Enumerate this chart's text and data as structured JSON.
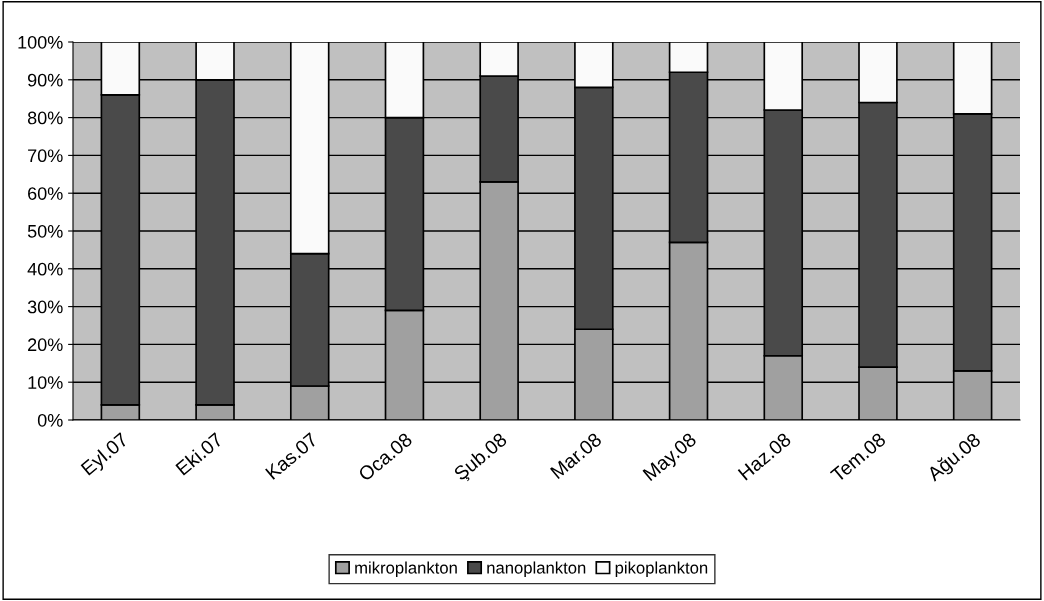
{
  "chart_data": {
    "type": "bar",
    "stacked": true,
    "categories": [
      "Eyl.07",
      "Eki.07",
      "Kas.07",
      "Oca.08",
      "Şub.08",
      "Mar.08",
      "May.08",
      "Haz.08",
      "Tem.08",
      "Ağu.08"
    ],
    "series": [
      {
        "name": "mikroplankton",
        "color": "#a0a0a0",
        "values": [
          4,
          4,
          9,
          29,
          63,
          24,
          47,
          17,
          14,
          13
        ]
      },
      {
        "name": "nanoplankton",
        "color": "#4a4a4a",
        "values": [
          82,
          86,
          35,
          51,
          28,
          64,
          45,
          65,
          70,
          68
        ]
      },
      {
        "name": "pikoplankton",
        "color": "#fafafa",
        "values": [
          14,
          10,
          56,
          20,
          9,
          12,
          8,
          18,
          16,
          19
        ]
      }
    ],
    "ylim": [
      0,
      100
    ],
    "yticks": [
      {
        "value": 0,
        "label": "0%"
      },
      {
        "value": 10,
        "label": "10%"
      },
      {
        "value": 20,
        "label": "20%"
      },
      {
        "value": 30,
        "label": "30%"
      },
      {
        "value": 40,
        "label": "40%"
      },
      {
        "value": 50,
        "label": "50%"
      },
      {
        "value": 60,
        "label": "60%"
      },
      {
        "value": 70,
        "label": "70%"
      },
      {
        "value": 80,
        "label": "80%"
      },
      {
        "value": 90,
        "label": "90%"
      },
      {
        "value": 100,
        "label": "100%"
      }
    ],
    "grid": "y",
    "legend": "bottom"
  }
}
